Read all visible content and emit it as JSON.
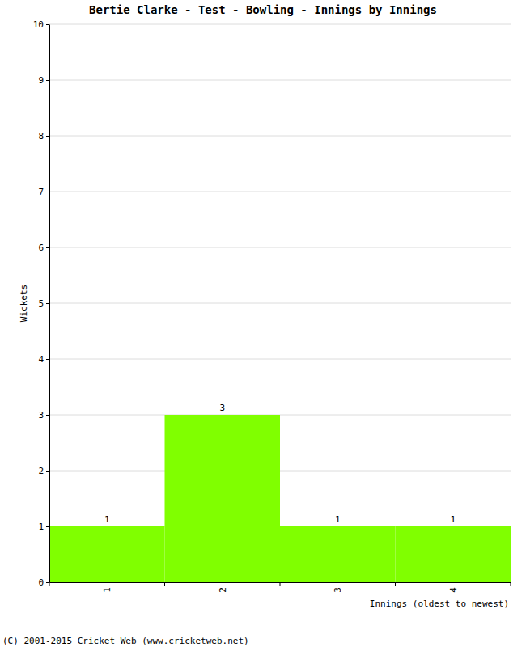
{
  "chart_data": {
    "type": "bar",
    "title": "Bertie Clarke - Test - Bowling - Innings by Innings",
    "x_label": "Innings (oldest to newest)",
    "y_label": "Wickets",
    "categories": [
      "1",
      "2",
      "3",
      "4"
    ],
    "values": [
      1,
      3,
      1,
      1
    ],
    "color": "#80ff00",
    "ylim": [
      0,
      10
    ],
    "yticks": [
      0,
      1,
      2,
      3,
      4,
      5,
      6,
      7,
      8,
      9,
      10
    ],
    "grid": true,
    "data_labels": true,
    "annotations": [
      "(C) 2001-2015 Cricket Web (www.cricketweb.net)"
    ]
  }
}
